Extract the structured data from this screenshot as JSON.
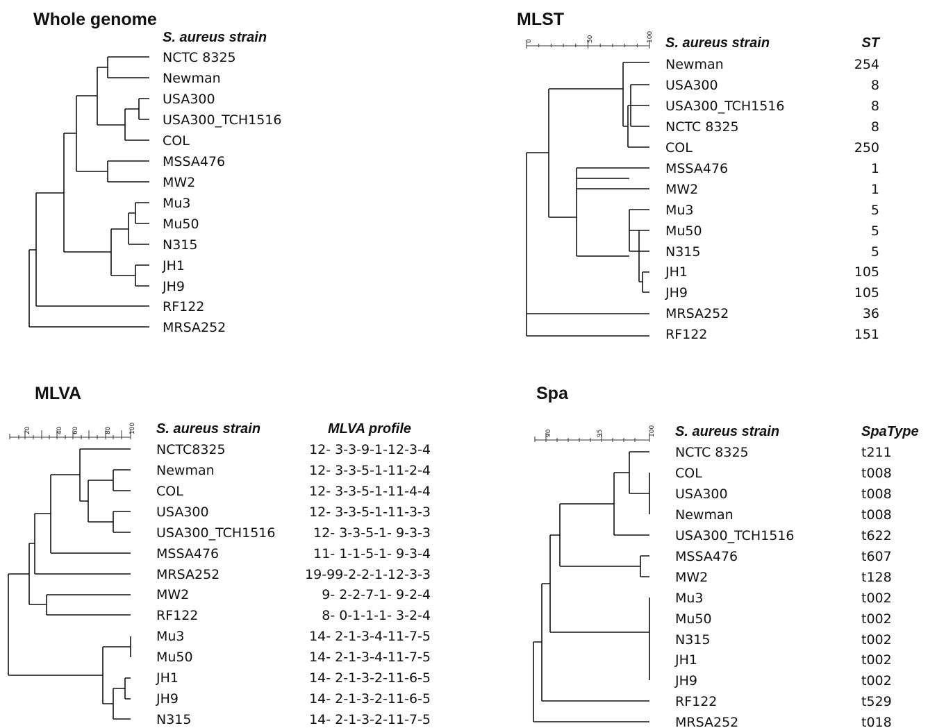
{
  "panels": {
    "whole_genome": {
      "title": "Whole genome",
      "strain_header": "S. aureus strain",
      "strains": [
        "NCTC 8325",
        "Newman",
        "USA300",
        "USA300_TCH1516",
        "COL",
        "MSSA476",
        "MW2",
        "Mu3",
        "Mu50",
        "N315",
        "JH1",
        "JH9",
        "RF122",
        "MRSA252"
      ]
    },
    "mlst": {
      "title": "MLST",
      "strain_header": "S. aureus strain",
      "value_header": "ST",
      "scale_ticks": [
        "0",
        "50",
        "100"
      ],
      "strains": [
        "Newman",
        "USA300",
        "USA300_TCH1516",
        "NCTC 8325",
        "COL",
        "MSSA476",
        "MW2",
        "Mu3",
        "Mu50",
        "N315",
        "JH1",
        "JH9",
        "MRSA252",
        "RF122"
      ],
      "values": [
        "254",
        "8",
        "8",
        "8",
        "250",
        "1",
        "1",
        "5",
        "5",
        "5",
        "105",
        "105",
        "36",
        "151"
      ]
    },
    "mlva": {
      "title": "MLVA",
      "strain_header": "S. aureus strain",
      "value_header": "MLVA profile",
      "scale_ticks": [
        "20",
        "40",
        "60",
        "80",
        "100"
      ],
      "strains": [
        "NCTC8325",
        "Newman",
        "COL",
        "USA300",
        "USA300_TCH1516",
        "MSSA476",
        "MRSA252",
        "MW2",
        "RF122",
        "Mu3",
        "Mu50",
        "JH1",
        "JH9",
        "N315"
      ],
      "values": [
        "12- 3-3-9-1-12-3-4",
        "12- 3-3-5-1-11-2-4",
        "12- 3-3-5-1-11-4-4",
        "12- 3-3-5-1-11-3-3",
        "12- 3-3-5-1- 9-3-3",
        "11- 1-1-5-1- 9-3-4",
        "19-99-2-2-1-12-3-3",
        "9- 2-2-7-1- 9-2-4",
        "8- 0-1-1-1- 3-2-4",
        "14- 2-1-3-4-11-7-5",
        "14- 2-1-3-4-11-7-5",
        "14- 2-1-3-2-11-6-5",
        "14- 2-1-3-2-11-6-5",
        "14- 2-1-3-2-11-7-5"
      ]
    },
    "spa": {
      "title": "Spa",
      "strain_header": "S. aureus strain",
      "value_header": "SpaType",
      "scale_ticks": [
        "90",
        "95",
        "100"
      ],
      "strains": [
        "NCTC 8325",
        "COL",
        "USA300",
        "Newman",
        "USA300_TCH1516",
        "MSSA476",
        "MW2",
        "Mu3",
        "Mu50",
        "N315",
        "JH1",
        "JH9",
        "RF122",
        "MRSA252"
      ],
      "values": [
        "t211",
        "t008",
        "t008",
        "t008",
        "t622",
        "t607",
        "t128",
        "t002",
        "t002",
        "t002",
        "t002",
        "t002",
        "t529",
        "t018"
      ]
    }
  }
}
